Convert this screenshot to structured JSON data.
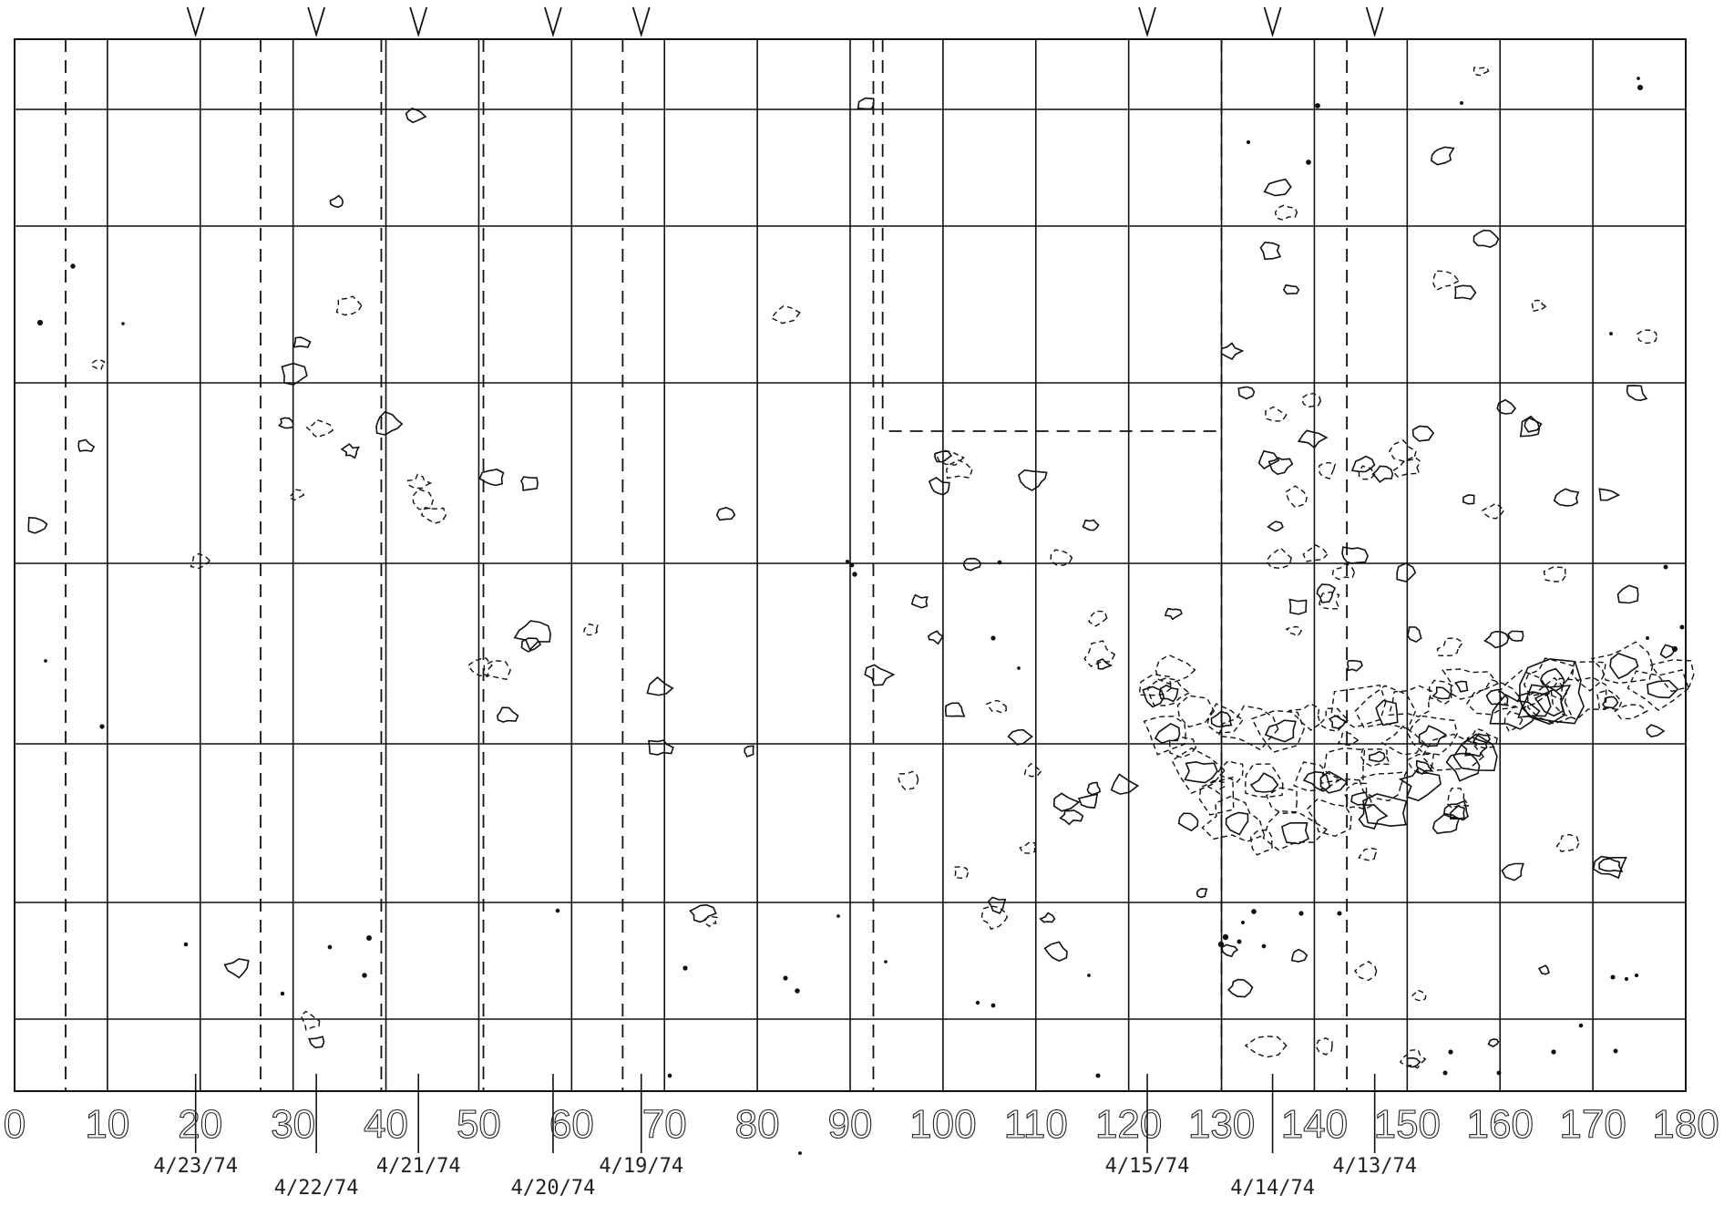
{
  "chart_data": {
    "type": "contour",
    "title": "",
    "xlabel": "",
    "ylabel": "",
    "xlim": [
      0,
      180
    ],
    "x_ticks": [
      0,
      10,
      20,
      30,
      40,
      50,
      60,
      70,
      80,
      90,
      100,
      110,
      120,
      130,
      140,
      150,
      160,
      170,
      180
    ],
    "x_tick_labels": [
      "0",
      "10",
      "20",
      "30",
      "40",
      "50",
      "60",
      "70",
      "80",
      "90",
      "100",
      "110",
      "120",
      "130",
      "140",
      "150",
      "160",
      "170",
      "180"
    ],
    "grid": true,
    "date_markers": [
      {
        "x": 19.5,
        "label": "4/23/74"
      },
      {
        "x": 32.5,
        "label": "4/22/74"
      },
      {
        "x": 43.5,
        "label": "4/21/74"
      },
      {
        "x": 58,
        "label": "4/20/74"
      },
      {
        "x": 67.5,
        "label": "4/19/74"
      },
      {
        "x": 122,
        "label": "4/15/74"
      },
      {
        "x": 135.5,
        "label": "4/14/74"
      },
      {
        "x": 146.5,
        "label": "4/13/74"
      }
    ],
    "dashed_boundaries_x": [
      5.5,
      26.5,
      39.5,
      50.5,
      65.5,
      92.5,
      130,
      143.5
    ]
  }
}
